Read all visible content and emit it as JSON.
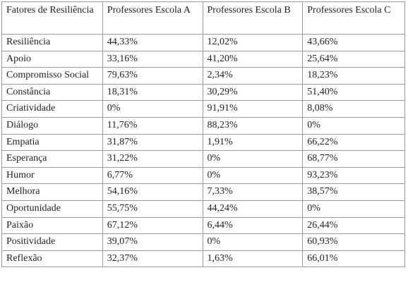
{
  "table": {
    "header": [
      "Fatores de Resiliência",
      "Professores Escola A",
      "Professores Escola B",
      "Professores Escola C"
    ],
    "rows": [
      [
        "Resiliência",
        "44,33%",
        "12,02%",
        "43,66%"
      ],
      [
        "Apoio",
        "33,16%",
        "41,20%",
        "25,64%"
      ],
      [
        "Compromisso Social",
        "79,63%",
        "2,34%",
        "18,23%"
      ],
      [
        "Constância",
        "18,31%",
        "30,29%",
        "51,40%"
      ],
      [
        "Criatividade",
        "0%",
        "91,91%",
        "8,08%"
      ],
      [
        "Diálogo",
        "11,76%",
        "88,23%",
        "0%"
      ],
      [
        "Empatia",
        "31,87%",
        "1,91%",
        "66,22%"
      ],
      [
        "Esperança",
        "31,22%",
        "0%",
        "68,77%"
      ],
      [
        "Humor",
        "6,77%",
        "0%",
        "93,23%"
      ],
      [
        "Melhora",
        "54,16%",
        "7,33%",
        "38,57%"
      ],
      [
        "Oportunidade",
        "55,75%",
        "44,24%",
        "0%"
      ],
      [
        "Paixão",
        "67,12%",
        "6,44%",
        "26,44%"
      ],
      [
        "Positividade",
        "39,07%",
        "0%",
        "60,93%"
      ],
      [
        "Reflexão",
        "32,37%",
        "1,63%",
        "66,01%"
      ]
    ]
  }
}
